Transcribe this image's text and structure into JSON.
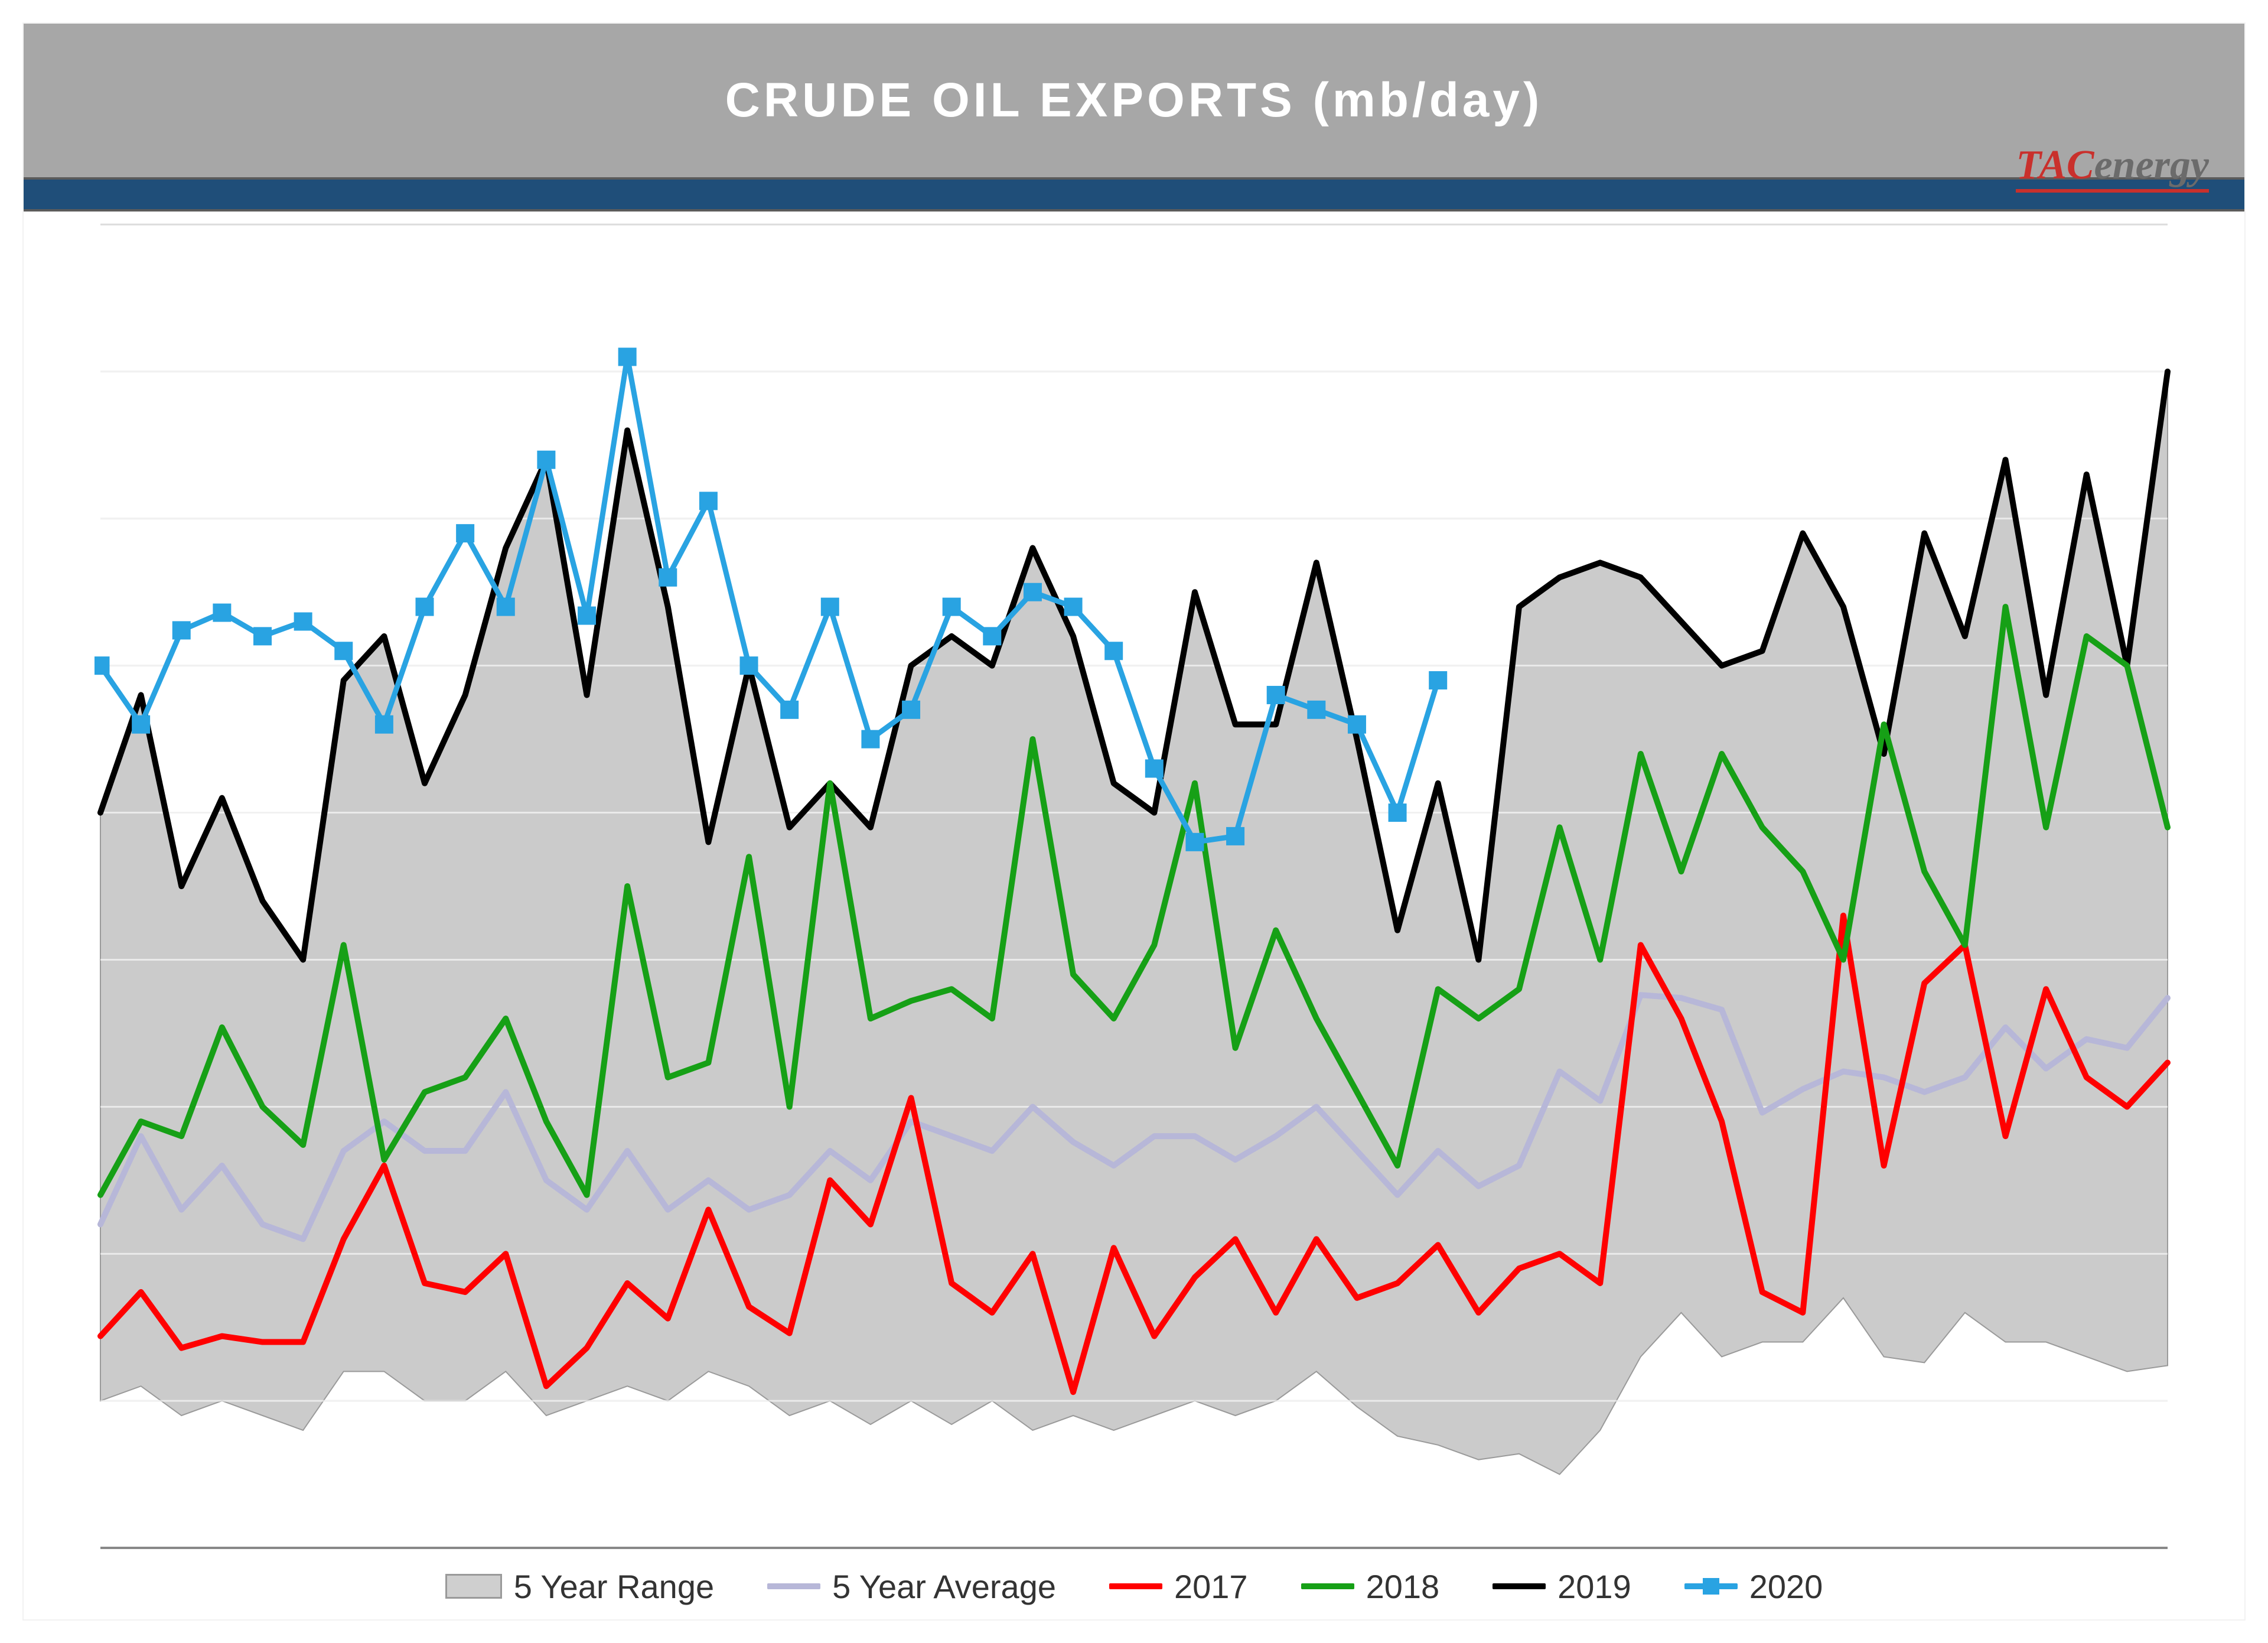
{
  "title": "CRUDE OIL EXPORTS (mb/day)",
  "logo": {
    "tac": "TAC",
    "energy": "energy"
  },
  "chart": {
    "type": "line+area",
    "background_color": "#ffffff",
    "grid_color": "#dcdcdc",
    "grid_line_width": 3,
    "x_count": 52,
    "ylim": [
      0,
      4500
    ],
    "ytick_step": 500,
    "range_upper": [
      2500,
      2900,
      2250,
      2550,
      2200,
      2000,
      2950,
      3100,
      2600,
      2900,
      3400,
      3700,
      2900,
      3800,
      3200,
      2400,
      3000,
      2450,
      2600,
      2450,
      3000,
      3100,
      3000,
      3400,
      3100,
      2600,
      2500,
      3250,
      2800,
      2800,
      3350,
      2750,
      2100,
      2600,
      2000,
      3200,
      3300,
      3350,
      3300,
      3150,
      3000,
      3050,
      3450,
      3200,
      2700,
      3450,
      3100,
      3700,
      2900,
      3650,
      3000,
      4000
    ],
    "range_lower": [
      500,
      550,
      450,
      500,
      450,
      400,
      600,
      600,
      500,
      500,
      600,
      450,
      500,
      550,
      500,
      600,
      550,
      450,
      500,
      420,
      500,
      420,
      500,
      400,
      450,
      400,
      450,
      500,
      450,
      500,
      600,
      480,
      380,
      350,
      300,
      320,
      250,
      400,
      650,
      800,
      650,
      700,
      700,
      850,
      650,
      630,
      800,
      700,
      700,
      650,
      600,
      620
    ],
    "series": {
      "avg": {
        "label": "5 Year Average",
        "color": "#b7b7d8",
        "width": 10,
        "values": [
          1100,
          1400,
          1150,
          1300,
          1100,
          1050,
          1350,
          1450,
          1350,
          1350,
          1550,
          1250,
          1150,
          1350,
          1150,
          1250,
          1150,
          1200,
          1350,
          1250,
          1450,
          1400,
          1350,
          1500,
          1380,
          1300,
          1400,
          1400,
          1320,
          1400,
          1500,
          1350,
          1200,
          1350,
          1230,
          1300,
          1620,
          1520,
          1880,
          1870,
          1830,
          1480,
          1560,
          1620,
          1600,
          1550,
          1600,
          1770,
          1630,
          1730,
          1700,
          1870
        ]
      },
      "y2017": {
        "label": "2017",
        "color": "#ff0000",
        "width": 10,
        "values": [
          720,
          870,
          680,
          720,
          700,
          700,
          1050,
          1300,
          900,
          870,
          1000,
          550,
          680,
          900,
          780,
          1150,
          820,
          730,
          1250,
          1100,
          1530,
          900,
          800,
          1000,
          530,
          1020,
          720,
          920,
          1050,
          800,
          1050,
          850,
          900,
          1030,
          800,
          950,
          1000,
          900,
          2050,
          1800,
          1450,
          870,
          800,
          2150,
          1300,
          1920,
          2050,
          1400,
          1900,
          1600,
          1500,
          1650
        ]
      },
      "y2018": {
        "label": "2018",
        "color": "#16a016",
        "width": 10,
        "values": [
          1200,
          1450,
          1400,
          1770,
          1500,
          1370,
          2050,
          1320,
          1550,
          1600,
          1800,
          1450,
          1200,
          2250,
          1600,
          1650,
          2350,
          1500,
          2600,
          1800,
          1860,
          1900,
          1800,
          2750,
          1950,
          1800,
          2050,
          2600,
          1700,
          2100,
          1800,
          1550,
          1300,
          1900,
          1800,
          1900,
          2450,
          2000,
          2700,
          2300,
          2700,
          2450,
          2300,
          2000,
          2800,
          2300,
          2050,
          3200,
          2450,
          3100,
          3000,
          2450
        ],
        "extra_spike_index": 43,
        "extra_spike_value": 2150
      },
      "y2019": {
        "label": "2019",
        "color": "#000000",
        "width": 10,
        "values": [
          2500,
          2900,
          2250,
          2550,
          2200,
          2000,
          2950,
          3100,
          2600,
          2900,
          3400,
          3700,
          2900,
          3800,
          3200,
          2400,
          3000,
          2450,
          2600,
          2450,
          3000,
          3100,
          3000,
          3400,
          3100,
          2600,
          2500,
          3250,
          2800,
          2800,
          3350,
          2750,
          2100,
          2600,
          2000,
          3200,
          3300,
          3350,
          3300,
          3150,
          3000,
          3050,
          3450,
          3200,
          2700,
          3450,
          3100,
          3700,
          2900,
          3650,
          3000,
          4000
        ]
      },
      "y2020": {
        "label": "2020",
        "color": "#29a3e2",
        "width": 9,
        "marker_size": 30,
        "values": [
          3000,
          2800,
          3120,
          3180,
          3100,
          3150,
          3050,
          2800,
          3200,
          3450,
          3200,
          3700,
          3170,
          4050,
          3300,
          3560,
          3000,
          2850,
          3200,
          2750,
          2850,
          3200,
          3100,
          3250,
          3200,
          3050,
          2650,
          2400,
          2420,
          2900,
          2850,
          2800,
          2500,
          2950
        ]
      }
    },
    "range_fill": "#c8c8c8",
    "range_stroke": "#9a9a9a"
  },
  "legend": {
    "range": "5 Year Range",
    "avg": "5 Year Average",
    "y2017": "2017",
    "y2018": "2018",
    "y2019": "2019",
    "y2020": "2020"
  }
}
